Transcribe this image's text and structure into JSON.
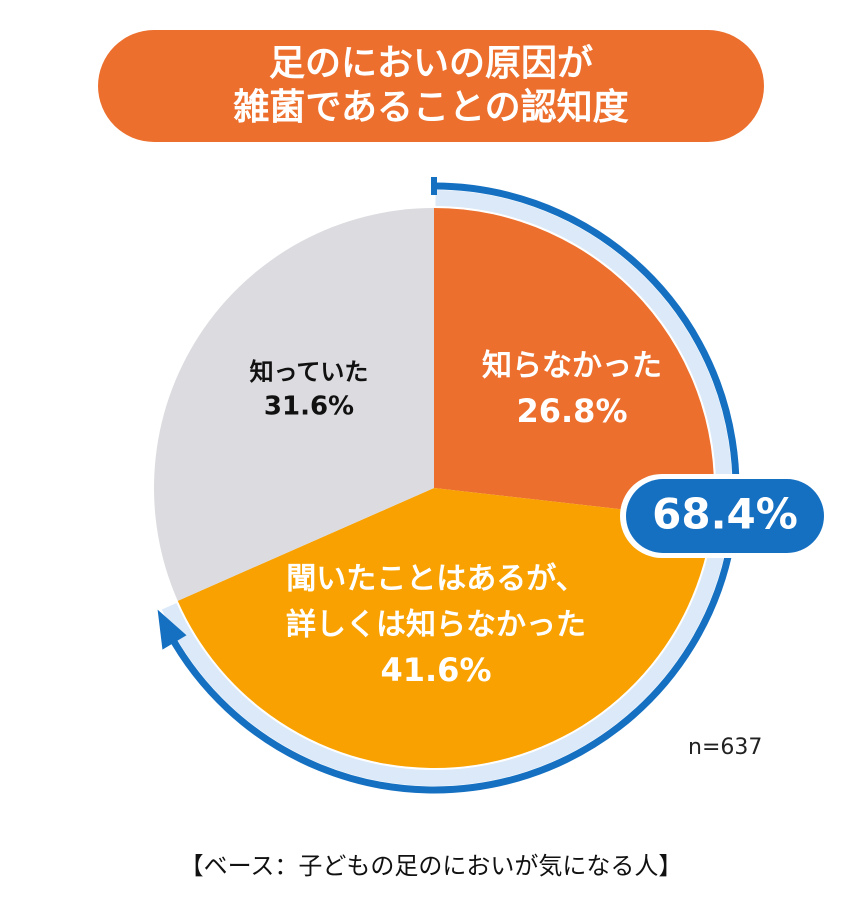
{
  "title": {
    "line1": "足のにおいの原因が",
    "line2": "雑菌であることの認知度"
  },
  "chart_data": {
    "type": "pie",
    "slices": [
      {
        "label_lines": [
          "知らなかった"
        ],
        "value": 26.8,
        "value_label": "26.8%",
        "color": "#ec6f2d",
        "text_color": "#ffffff"
      },
      {
        "label_lines": [
          "聞いたことはあるが、",
          "詳しくは知らなかった"
        ],
        "value": 41.6,
        "value_label": "41.6%",
        "color": "#f8a100",
        "text_color": "#ffffff"
      },
      {
        "label_lines": [
          "知っていた"
        ],
        "value": 31.6,
        "value_label": "31.6%",
        "color": "#dcdbe0",
        "text_color": "#111111"
      }
    ],
    "start": "12 o'clock",
    "direction": "clockwise",
    "highlight": {
      "value_label": "68.4%",
      "covers": [
        "知らなかった",
        "聞いたことはあるが、詳しくは知らなかった"
      ],
      "color": "#1570c2"
    }
  },
  "sample_size": "n=637",
  "base_note": "【ベース：子どもの足のにおいが気になる人】"
}
